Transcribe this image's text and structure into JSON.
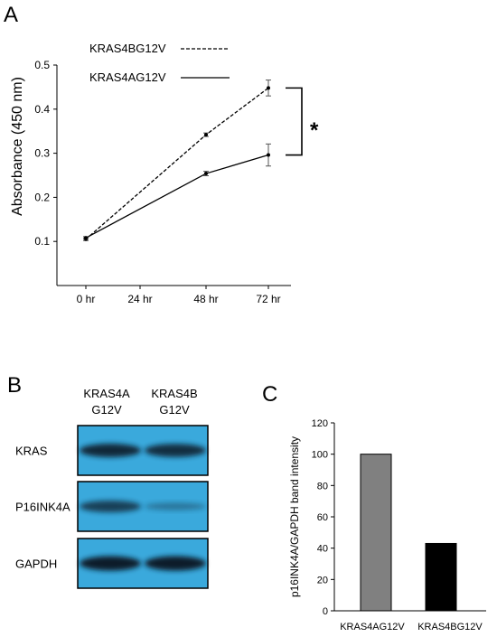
{
  "panel_labels": {
    "a": "A",
    "b": "B",
    "c": "C"
  },
  "significance_mark": "*",
  "chart_data": [
    {
      "id": "A",
      "type": "line",
      "x": [
        "0 hr",
        "24 hr",
        "48 hr",
        "72 hr"
      ],
      "ylabel": "Absorbance (450 nm)",
      "ylim": [
        0,
        0.5
      ],
      "yticks": [
        0.1,
        0.2,
        0.3,
        0.4,
        0.5
      ],
      "grid": false,
      "legend_position": "top-left",
      "series": [
        {
          "name": "KRAS4BG12V",
          "style": "dashed",
          "points": [
            {
              "x": "0 hr",
              "y": 0.105,
              "err": 0.003
            },
            {
              "x": "48 hr",
              "y": 0.342,
              "err": 0.004
            },
            {
              "x": "72 hr",
              "y": 0.448,
              "err": 0.018
            }
          ]
        },
        {
          "name": "KRAS4AG12V",
          "style": "solid",
          "points": [
            {
              "x": "0 hr",
              "y": 0.108,
              "err": 0.003
            },
            {
              "x": "48 hr",
              "y": 0.254,
              "err": 0.005
            },
            {
              "x": "72 hr",
              "y": 0.296,
              "err": 0.025
            }
          ]
        }
      ]
    },
    {
      "id": "C",
      "type": "bar",
      "categories": [
        "KRAS4AG12V",
        "KRAS4BG12V"
      ],
      "values": [
        100,
        43
      ],
      "colors": [
        "#808080",
        "#000000"
      ],
      "ylabel": "p16INK4A/GAPDH band intensity",
      "ylim": [
        0,
        120
      ],
      "yticks": [
        0,
        20,
        40,
        60,
        80,
        100,
        120
      ]
    }
  ],
  "blot": {
    "lanes": [
      {
        "line1": "KRAS4A",
        "line2": "G12V"
      },
      {
        "line1": "KRAS4B",
        "line2": "G12V"
      }
    ],
    "rows": [
      {
        "label": "KRAS",
        "intensity": [
          0.9,
          0.85
        ]
      },
      {
        "label": "P16INK4A",
        "intensity": [
          0.7,
          0.25
        ]
      },
      {
        "label": "GAPDH",
        "intensity": [
          1.0,
          1.0
        ]
      }
    ],
    "background_color": "#3aa9dc"
  }
}
